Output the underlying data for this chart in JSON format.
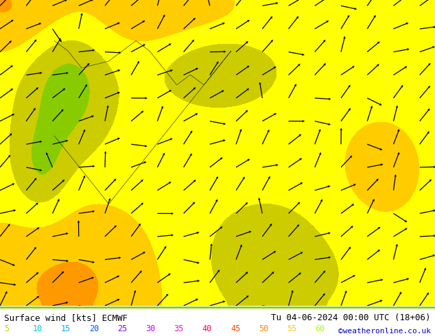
{
  "title_left": "Surface wind [kts] ECMWF",
  "title_right": "Tu 04-06-2024 00:00 UTC (18+06)",
  "credit": "©weatheronline.co.uk",
  "legend_values": [
    "5",
    "10",
    "15",
    "20",
    "25",
    "30",
    "35",
    "40",
    "45",
    "50",
    "55",
    "60"
  ],
  "legend_colors": [
    "#00ff00",
    "#00dd00",
    "#00cc00",
    "#00ffff",
    "#00aaff",
    "#0055ff",
    "#aa00ff",
    "#ff00ff",
    "#ff0055",
    "#ff4400",
    "#ff8800",
    "#ffaa00"
  ],
  "bg_color": "#ffffff",
  "map_bg": "#ffff00",
  "colormap_levels": [
    5,
    10,
    15,
    20,
    25,
    30,
    35,
    40,
    45,
    50,
    55,
    60
  ],
  "colormap_colors": [
    "#00cc00",
    "#33cc00",
    "#99cc00",
    "#cccc00",
    "#ffff00",
    "#ffcc00",
    "#ff9900",
    "#ff6600",
    "#ff0000",
    "#cc0066",
    "#9900cc",
    "#6600ff"
  ]
}
